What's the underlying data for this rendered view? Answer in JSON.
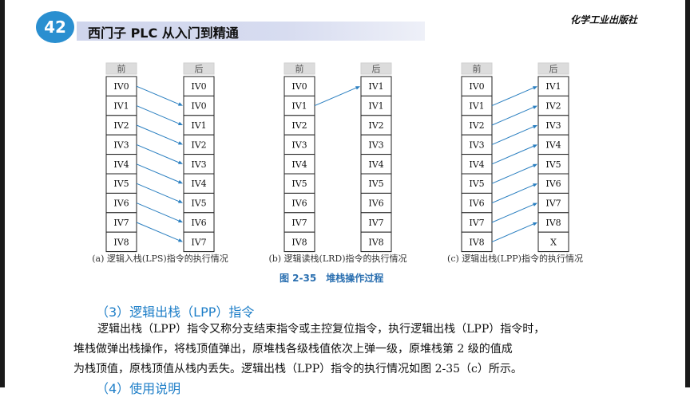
{
  "header": {
    "page_number": "42",
    "book_title": "西门子 PLC 从入门到精通",
    "publisher": "化学工业出版社"
  },
  "figure": {
    "title": "图 2-35　堆栈操作过程",
    "panels": [
      {
        "before_label": "前",
        "after_label": "后",
        "before": [
          "IV0",
          "IV1",
          "IV2",
          "IV3",
          "IV4",
          "IV5",
          "IV6",
          "IV7",
          "IV8"
        ],
        "after": [
          "IV0",
          "IV0",
          "IV1",
          "IV2",
          "IV3",
          "IV4",
          "IV5",
          "IV6",
          "IV7"
        ],
        "caption": "(a) 逻辑入栈(LPS)指令的执行情况"
      },
      {
        "before_label": "前",
        "after_label": "后",
        "before": [
          "IV0",
          "IV1",
          "IV2",
          "IV3",
          "IV4",
          "IV5",
          "IV6",
          "IV7",
          "IV8"
        ],
        "after": [
          "IV1",
          "IV1",
          "IV2",
          "IV3",
          "IV4",
          "IV5",
          "IV6",
          "IV7",
          "IV8"
        ],
        "caption": "(b) 逻辑读栈(LRD)指令的执行情况"
      },
      {
        "before_label": "前",
        "after_label": "后",
        "before": [
          "IV0",
          "IV1",
          "IV2",
          "IV3",
          "IV4",
          "IV5",
          "IV6",
          "IV7",
          "IV8"
        ],
        "after": [
          "IV1",
          "IV2",
          "IV3",
          "IV4",
          "IV5",
          "IV6",
          "IV7",
          "IV8",
          "X"
        ],
        "caption": "(c) 逻辑出栈(LPP)指令的执行情况"
      }
    ]
  },
  "section": {
    "heading": "（3）逻辑出栈（LPP）指令",
    "paragraph_lines": [
      "逻辑出栈（LPP）指令又称分支结束指令或主控复位指令，执行逻辑出栈（LPP）指令时，",
      "堆栈做弹出栈操作，将栈顶值弹出，原堆栈各级栈值依次上弹一级，原堆栈第 2 级的值成",
      "为栈顶值，原栈顶值从栈内丢失。逻辑出栈（LPP）指令的执行情况如图 2-35（c）所示。"
    ],
    "next_heading": "（4）使用说明"
  },
  "colors": {
    "accent_blue": "#2a8fd0",
    "heading_blue": "#1f7fc8",
    "arrow_blue": "#2a7fc0"
  }
}
